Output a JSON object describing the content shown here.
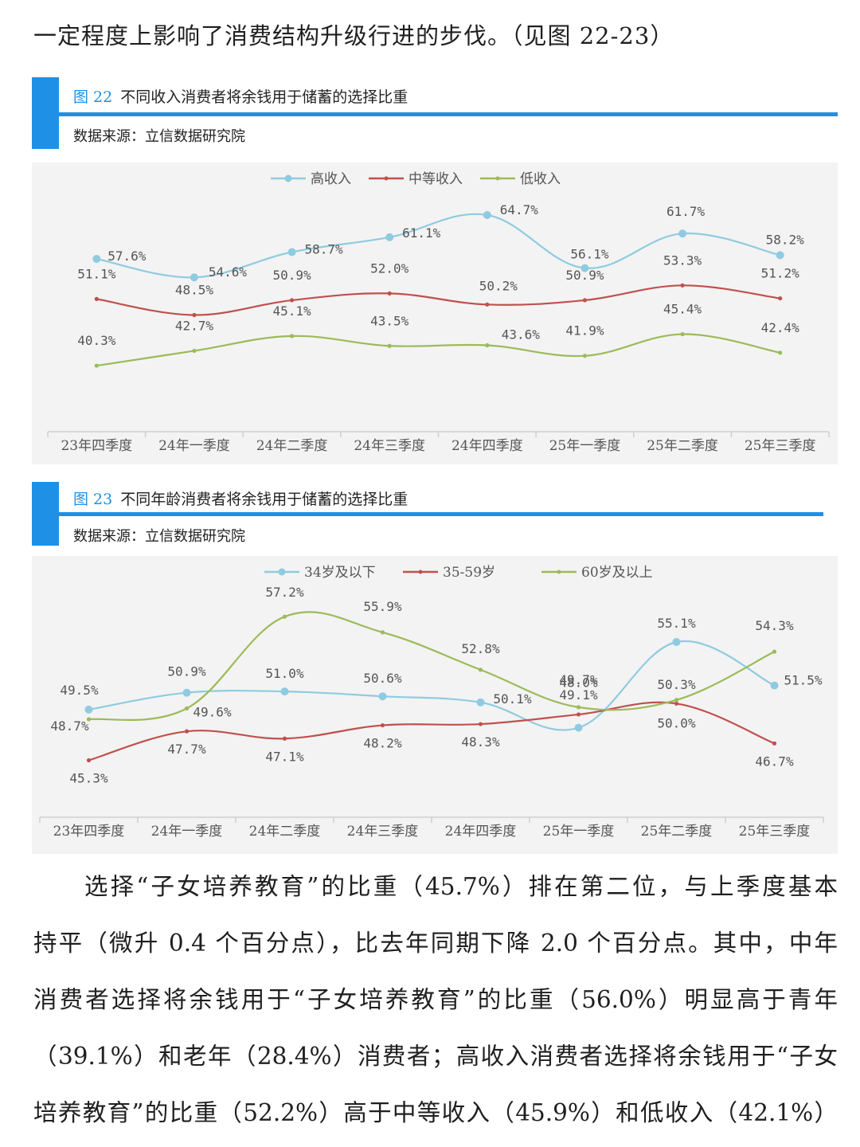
{
  "intro_line": "一定程度上影响了消费结构升级行进的步伐。（见图 22-23）",
  "figures": [
    {
      "number": "图 22",
      "title": "不同收入消费者将余钱用于储蓄的选择比重",
      "source": "数据来源：立信数据研究院"
    },
    {
      "number": "图 23",
      "title": "不同年龄消费者将余钱用于储蓄的选择比重",
      "source": "数据来源：立信数据研究院"
    }
  ],
  "chart_data": [
    {
      "type": "line",
      "categories": [
        "23年四季度",
        "24年一季度",
        "24年二季度",
        "24年三季度",
        "24年四季度",
        "25年一季度",
        "25年二季度",
        "25年三季度"
      ],
      "legend_position": "top-center",
      "series": [
        {
          "name": "高收入",
          "color": "#8fcbe0",
          "values": [
            57.6,
            54.6,
            58.7,
            61.1,
            64.7,
            56.1,
            61.7,
            58.2
          ],
          "labels": [
            "57.6%",
            "54.6%",
            "58.7%",
            "61.1%",
            "64.7%",
            "56.1%",
            "61.7%",
            "58.2%"
          ]
        },
        {
          "name": "中等收入",
          "color": "#c0504d",
          "values": [
            51.1,
            48.5,
            50.9,
            52.0,
            50.2,
            50.9,
            53.3,
            51.2
          ],
          "labels": [
            "51.1%",
            "48.5%",
            "50.9%",
            "52.0%",
            "50.2%",
            "50.9%",
            "53.3%",
            "51.2%"
          ]
        },
        {
          "name": "低收入",
          "color": "#9bbb59",
          "values": [
            40.3,
            42.7,
            45.1,
            43.5,
            43.6,
            41.9,
            45.4,
            42.4
          ],
          "labels": [
            "40.3%",
            "42.7%",
            "45.1%",
            "43.5%",
            "43.6%",
            "41.9%",
            "45.4%",
            "42.4%"
          ]
        }
      ]
    },
    {
      "type": "line",
      "categories": [
        "23年四季度",
        "24年一季度",
        "24年二季度",
        "24年三季度",
        "24年四季度",
        "25年一季度",
        "25年二季度",
        "25年三季度"
      ],
      "legend_position": "top-center",
      "series": [
        {
          "name": "34岁及以下",
          "color": "#8fcbe0",
          "values": [
            49.5,
            50.9,
            51.0,
            50.6,
            50.1,
            48.0,
            55.1,
            51.5
          ],
          "labels": [
            "49.5%",
            "50.9%",
            "51.0%",
            "50.6%",
            "50.1%",
            "48.0%",
            "55.1%",
            "51.5%"
          ]
        },
        {
          "name": "35-59岁",
          "color": "#c0504d",
          "values": [
            45.3,
            47.7,
            47.1,
            48.2,
            48.3,
            49.1,
            50.0,
            46.7
          ],
          "labels": [
            "45.3%",
            "47.7%",
            "47.1%",
            "48.2%",
            "48.3%",
            "49.1%",
            "50.0%",
            "46.7%"
          ]
        },
        {
          "name": "60岁及以上",
          "color": "#9bbb59",
          "values": [
            48.7,
            49.6,
            57.2,
            55.9,
            52.8,
            49.7,
            50.3,
            54.3
          ],
          "labels": [
            "48.7%",
            "49.6%",
            "57.2%",
            "55.9%",
            "52.8%",
            "49.7%",
            "50.3%",
            "54.3%"
          ]
        }
      ]
    }
  ],
  "paragraph_lines": [
    "选择“子女培养教育”的比重（45.7%）排在第二位，与上季度基本",
    "持平（微升 0.4 个百分点），比去年同期下降 2.0 个百分点。其中，中年",
    "消费者选择将余钱用于“子女培养教育”的比重（56.0%）明显高于青年",
    "（39.1%）和老年（28.4%）消费者；高收入消费者选择将余钱用于“子女",
    "培养教育”的比重（52.2%）高于中等收入（45.9%）和低收入（42.1%）"
  ]
}
